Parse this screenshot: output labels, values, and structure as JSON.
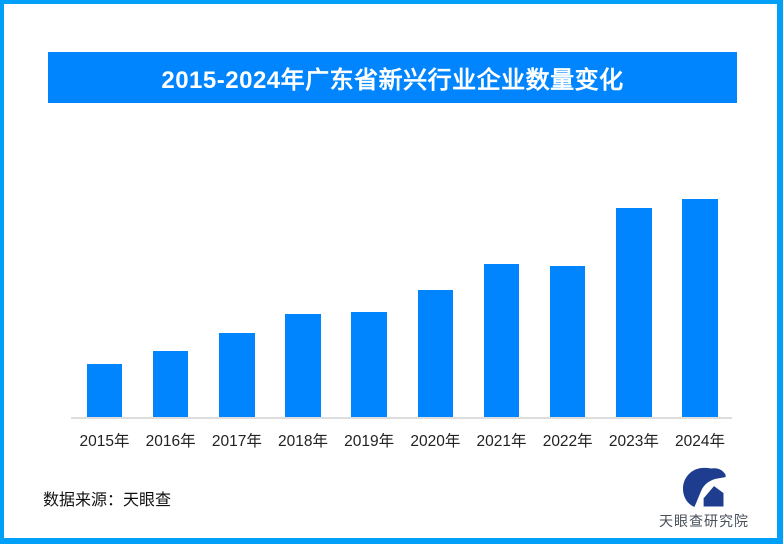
{
  "page": {
    "background": "#FFFFFF"
  },
  "colors": {
    "accent_blue": "#0085FF",
    "border_blue": "#00A0F8",
    "baseline_gray": "#DDDDDD",
    "logo_navy": "#1F3D8F",
    "logo_text_gray": "#474F59",
    "title_text": "#FFFFFF",
    "axis_label_text": "#222222"
  },
  "header": {
    "title": "2015-2024年广东省新兴行业企业数量变化"
  },
  "chart_data": {
    "type": "bar",
    "title": "2015-2024年广东省新兴行业企业数量变化",
    "categories": [
      "2015年",
      "2016年",
      "2017年",
      "2018年",
      "2019年",
      "2020年",
      "2021年",
      "2022年",
      "2023年",
      "2024年"
    ],
    "values": [
      24.7,
      30.5,
      38.7,
      47.6,
      48.6,
      58.5,
      70.3,
      69.5,
      95.7,
      100
    ],
    "units": "relative bar height, % of tallest bar (no numeric axis or data labels shown)",
    "xlabel": "",
    "ylabel": "",
    "ylim": [
      0,
      100
    ],
    "grid": false,
    "legend": null,
    "data_labels": false,
    "bar_color": "#0085FF",
    "baseline_color": "#DDDDDD"
  },
  "footer": {
    "source_text": "数据来源：天眼查",
    "logo_text": "天眼查研究院"
  }
}
